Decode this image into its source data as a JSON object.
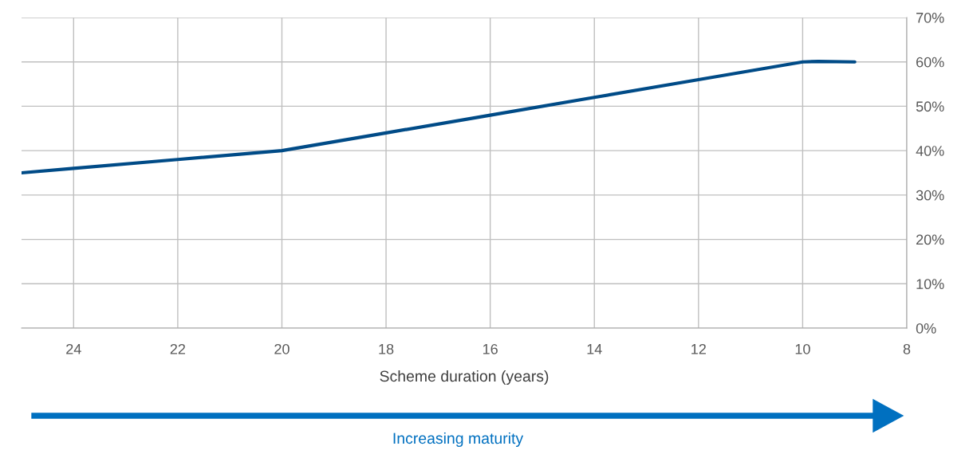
{
  "chart_data": {
    "type": "line",
    "xlabel": "Scheme duration (years)",
    "x": [
      25,
      24,
      22,
      20,
      18,
      16,
      14,
      12,
      10,
      9.7,
      9
    ],
    "series": [
      {
        "color": "#004b87",
        "values": [
          35,
          36,
          38,
          40,
          44,
          48,
          52,
          56,
          60,
          60.1,
          60
        ]
      }
    ],
    "xlim": [
      25,
      8
    ],
    "xticks": [
      24,
      22,
      20,
      18,
      16,
      14,
      12,
      10,
      8
    ],
    "ylim": [
      0,
      70
    ],
    "yticks": [
      {
        "value": 0,
        "label": "0%"
      },
      {
        "value": 10,
        "label": "10%"
      },
      {
        "value": 20,
        "label": "20%"
      },
      {
        "value": 30,
        "label": "30%"
      },
      {
        "value": 40,
        "label": "40%"
      },
      {
        "value": 50,
        "label": "50%"
      },
      {
        "value": 60,
        "label": "60%"
      },
      {
        "value": 70,
        "label": "70%"
      }
    ],
    "grid": true,
    "marker": "none",
    "line_style": "solid",
    "annotations": [
      "Increasing maturity"
    ]
  }
}
